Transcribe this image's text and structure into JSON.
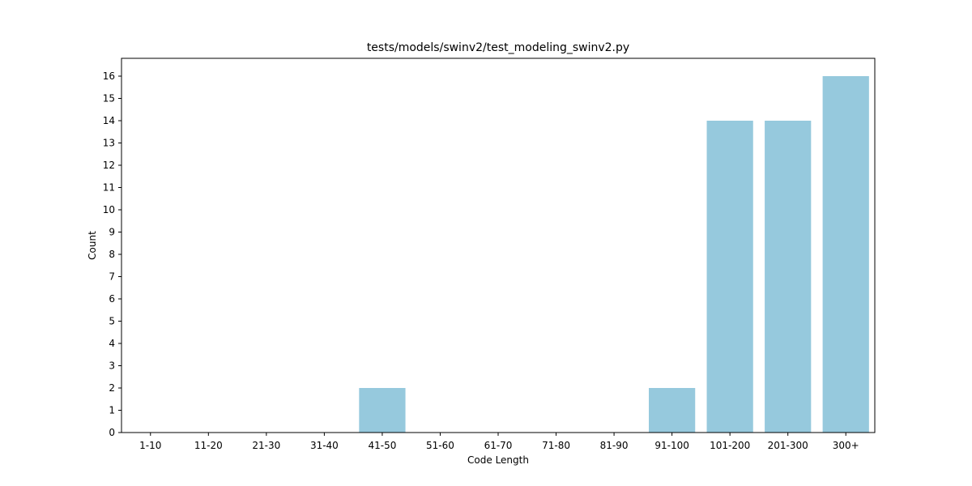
{
  "chart_data": {
    "type": "bar",
    "title": "tests/models/swinv2/test_modeling_swinv2.py",
    "xlabel": "Code Length",
    "ylabel": "Count",
    "categories": [
      "1-10",
      "11-20",
      "21-30",
      "31-40",
      "41-50",
      "51-60",
      "61-70",
      "71-80",
      "81-90",
      "91-100",
      "101-200",
      "201-300",
      "300+"
    ],
    "values": [
      0,
      0,
      0,
      0,
      2,
      0,
      0,
      0,
      0,
      2,
      14,
      14,
      16
    ],
    "ylim": [
      0,
      16.8
    ],
    "yticks": [
      0,
      1,
      2,
      3,
      4,
      5,
      6,
      7,
      8,
      9,
      10,
      11,
      12,
      13,
      14,
      15,
      16
    ],
    "grid": false,
    "bar_color": "#96c9dd"
  }
}
